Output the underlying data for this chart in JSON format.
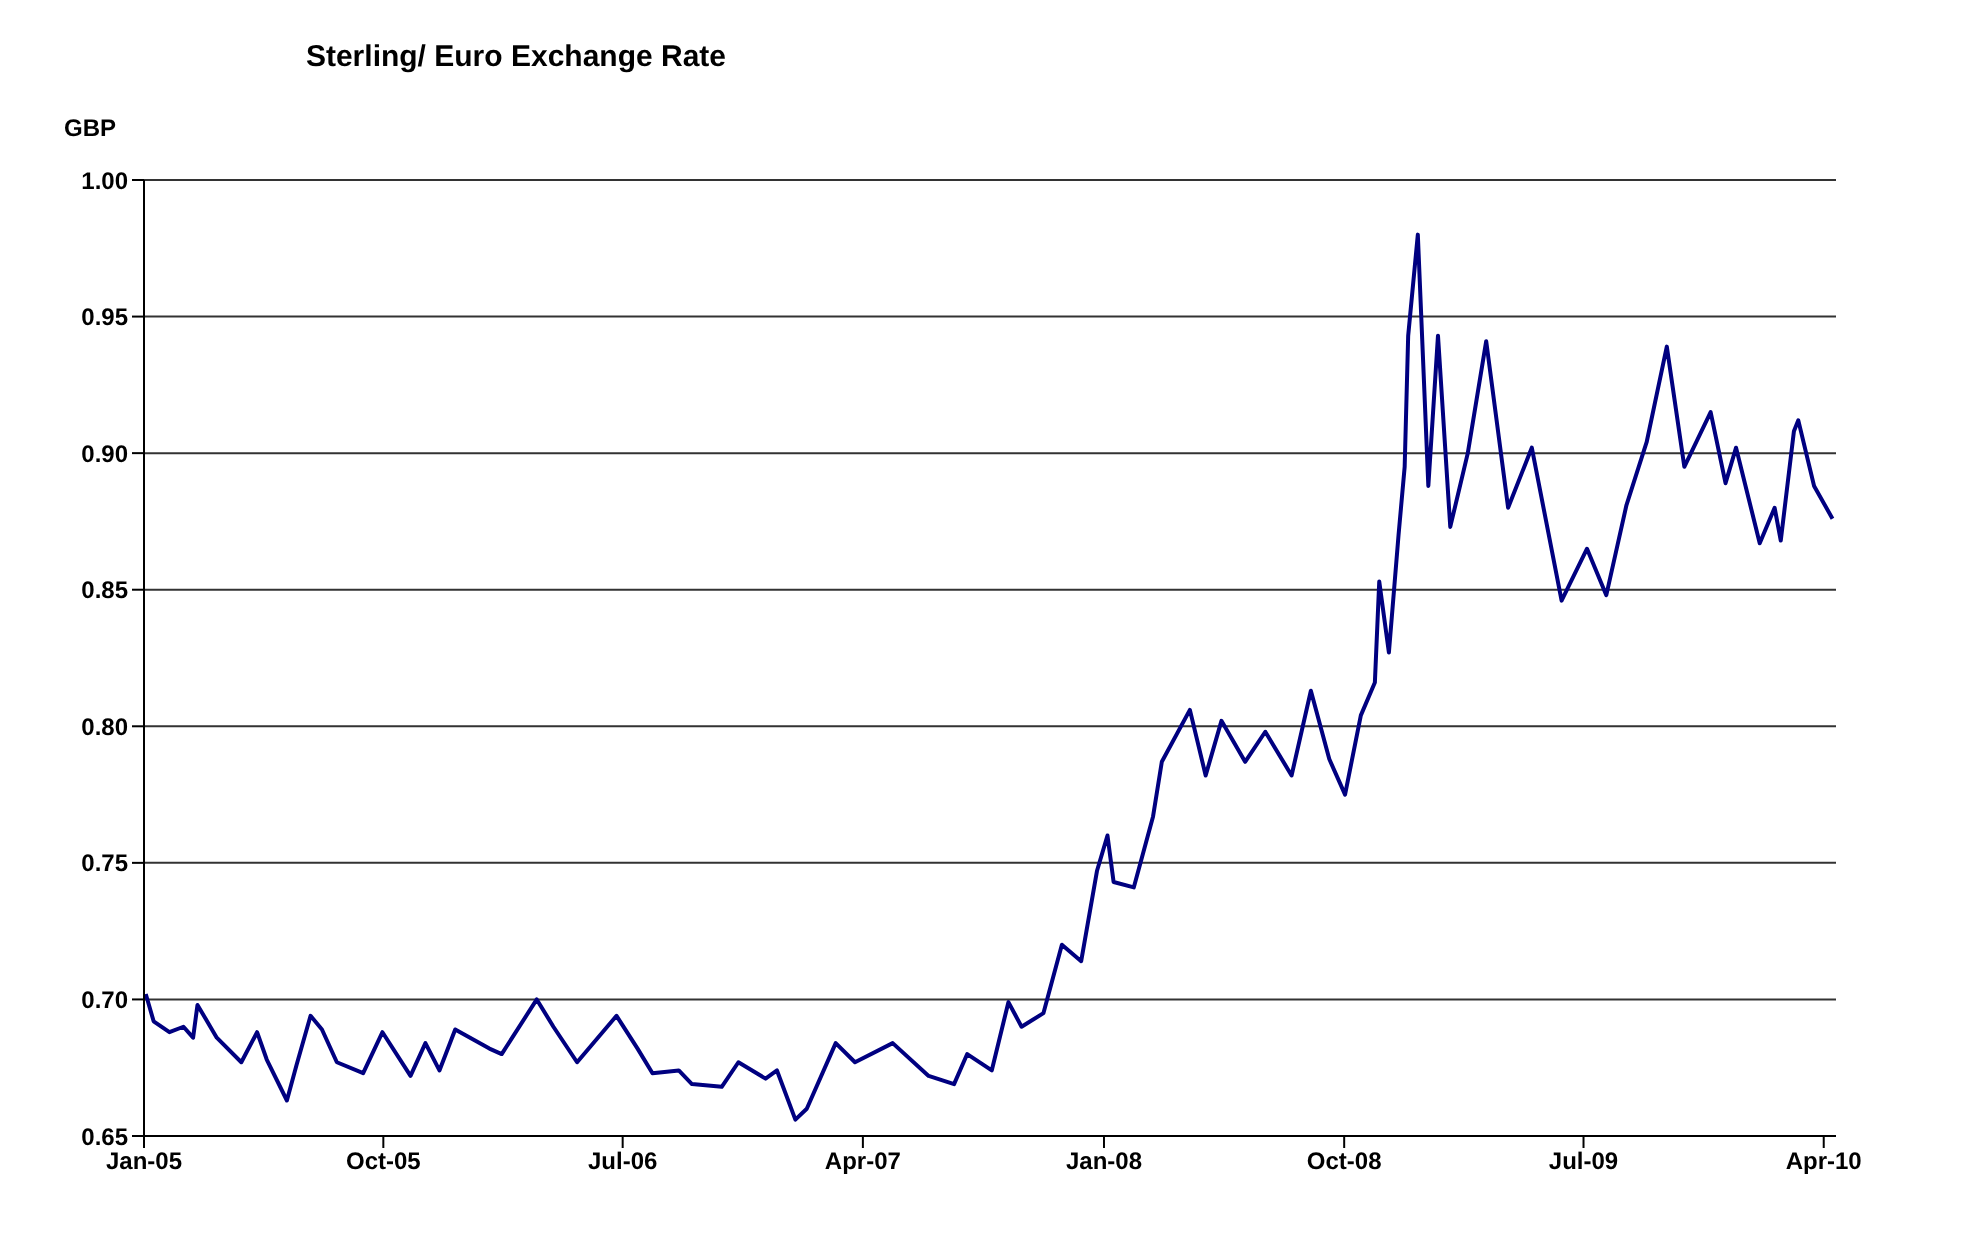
{
  "chart_data": {
    "type": "line",
    "title": "Sterling/ Euro Exchange Rate",
    "ylabel": "GBP",
    "x": [
      "2005-01-03",
      "2005-01-12",
      "2005-01-30",
      "2005-02-15",
      "2005-02-26",
      "2005-03-03",
      "2005-03-25",
      "2005-04-22",
      "2005-05-10",
      "2005-05-21",
      "2005-06-13",
      "2005-06-24",
      "2005-07-10",
      "2005-07-23",
      "2005-08-09",
      "2005-09-08",
      "2005-09-30",
      "2005-11-01",
      "2005-11-18",
      "2005-12-04",
      "2005-12-22",
      "2006-01-30",
      "2006-02-13",
      "2006-03-25",
      "2006-04-13",
      "2006-05-10",
      "2006-06-24",
      "2006-07-18",
      "2006-08-04",
      "2006-09-03",
      "2006-09-18",
      "2006-10-22",
      "2006-11-10",
      "2006-12-11",
      "2006-12-24",
      "2007-01-14",
      "2007-01-27",
      "2007-03-01",
      "2007-03-23",
      "2007-05-05",
      "2007-06-15",
      "2007-07-14",
      "2007-07-29",
      "2007-08-26",
      "2007-09-14",
      "2007-09-29",
      "2007-10-24",
      "2007-11-14",
      "2007-12-06",
      "2007-12-24",
      "2008-01-05",
      "2008-01-12",
      "2008-02-04",
      "2008-02-26",
      "2008-03-07",
      "2008-04-08",
      "2008-04-26",
      "2008-05-14",
      "2008-06-10",
      "2008-07-03",
      "2008-08-02",
      "2008-08-24",
      "2008-09-14",
      "2008-10-02",
      "2008-10-20",
      "2008-11-05",
      "2008-11-10",
      "2008-11-21",
      "2008-12-02",
      "2008-12-09",
      "2008-12-13",
      "2008-12-24",
      "2009-01-05",
      "2009-01-16",
      "2009-01-30",
      "2009-02-19",
      "2009-03-12",
      "2009-04-06",
      "2009-05-03",
      "2009-06-06",
      "2009-07-05",
      "2009-07-27",
      "2009-08-19",
      "2009-09-11",
      "2009-10-04",
      "2009-10-24",
      "2009-11-23",
      "2009-12-10",
      "2009-12-22",
      "2010-01-18",
      "2010-02-04",
      "2010-02-11",
      "2010-02-26",
      "2010-03-03",
      "2010-03-21",
      "2010-04-11"
    ],
    "series": [
      {
        "color": "#000080",
        "values": [
          0.702,
          0.692,
          0.688,
          0.69,
          0.686,
          0.698,
          0.686,
          0.677,
          0.688,
          0.678,
          0.663,
          0.676,
          0.694,
          0.689,
          0.677,
          0.673,
          0.688,
          0.672,
          0.684,
          0.674,
          0.689,
          0.682,
          0.68,
          0.7,
          0.69,
          0.677,
          0.694,
          0.682,
          0.673,
          0.674,
          0.669,
          0.668,
          0.677,
          0.671,
          0.674,
          0.656,
          0.66,
          0.684,
          0.677,
          0.684,
          0.672,
          0.669,
          0.68,
          0.674,
          0.699,
          0.69,
          0.695,
          0.72,
          0.714,
          0.747,
          0.76,
          0.743,
          0.741,
          0.767,
          0.787,
          0.806,
          0.782,
          0.802,
          0.787,
          0.798,
          0.782,
          0.813,
          0.788,
          0.775,
          0.804,
          0.816,
          0.853,
          0.827,
          0.87,
          0.895,
          0.943,
          0.98,
          0.888,
          0.943,
          0.873,
          0.9,
          0.941,
          0.88,
          0.902,
          0.846,
          0.865,
          0.848,
          0.881,
          0.904,
          0.939,
          0.895,
          0.915,
          0.889,
          0.902,
          0.867,
          0.88,
          0.868,
          0.908,
          0.912,
          0.888,
          0.876
        ]
      }
    ],
    "xlim": [
      "2005-01-01",
      "2010-04-15"
    ],
    "xticks": [
      {
        "value": "2005-01",
        "label": "Jan-05"
      },
      {
        "value": "2005-10",
        "label": "Oct-05"
      },
      {
        "value": "2006-07",
        "label": "Jul-06"
      },
      {
        "value": "2007-04",
        "label": "Apr-07"
      },
      {
        "value": "2008-01",
        "label": "Jan-08"
      },
      {
        "value": "2008-10",
        "label": "Oct-08"
      },
      {
        "value": "2009-07",
        "label": "Jul-09"
      },
      {
        "value": "2010-04",
        "label": "Apr-10"
      }
    ],
    "ylim": [
      0.65,
      1.0
    ],
    "yticks": [
      {
        "value": 0.65,
        "label": "0.65"
      },
      {
        "value": 0.7,
        "label": "0.70"
      },
      {
        "value": 0.75,
        "label": "0.75"
      },
      {
        "value": 0.8,
        "label": "0.80"
      },
      {
        "value": 0.85,
        "label": "0.85"
      },
      {
        "value": 0.9,
        "label": "0.90"
      },
      {
        "value": 0.95,
        "label": "0.95"
      },
      {
        "value": 1.0,
        "label": "1.00"
      }
    ],
    "grid": "y",
    "legend": false,
    "marker": "none",
    "line_style": "solid"
  }
}
